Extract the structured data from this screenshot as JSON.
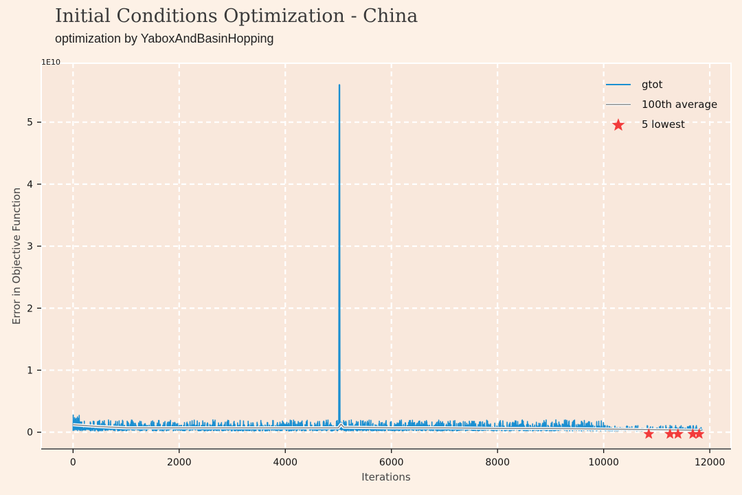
{
  "header": {
    "title": "Initial Conditions Optimization - China",
    "subtitle": "optimization by YaboxAndBasinHopping"
  },
  "colors": {
    "background": "#fdf1e6",
    "plot_area": "#f9e8dc",
    "grid": "#ffffff",
    "gtot": "#1a8fd1",
    "average": "#8a8a8a",
    "lowest": "#f23b3b"
  },
  "chart_data": {
    "type": "line",
    "title": "Initial Conditions Optimization - China",
    "subtitle": "optimization by YaboxAndBasinHopping",
    "xlabel": "Iterations",
    "ylabel": "Error in Objective Function",
    "y_scale_label": "1E10",
    "xlim": [
      -600,
      12400
    ],
    "ylim": [
      -0.27,
      5.95
    ],
    "x_ticks": [
      0,
      2000,
      4000,
      6000,
      8000,
      10000,
      12000
    ],
    "x_tick_labels": [
      "0",
      "2000",
      "4000",
      "6000",
      "8000",
      "10000",
      "12000"
    ],
    "y_ticks": [
      0,
      1,
      2,
      3,
      4,
      5
    ],
    "y_tick_labels": [
      "0",
      "1",
      "2",
      "3",
      "4",
      "5"
    ],
    "grid": true,
    "legend": "top-right",
    "series": [
      {
        "name": "gtot",
        "kind": "line",
        "x_range": [
          0,
          11850
        ],
        "baseline_range": [
          0.05,
          0.2
        ],
        "spike": {
          "x": 5020,
          "y": 5.6
        }
      },
      {
        "name": "100th average",
        "kind": "line",
        "points": [
          [
            0,
            0.12
          ],
          [
            500,
            0.09
          ],
          [
            1000,
            0.07
          ],
          [
            2000,
            0.07
          ],
          [
            3000,
            0.07
          ],
          [
            4000,
            0.07
          ],
          [
            5000,
            0.07
          ],
          [
            5050,
            0.13
          ],
          [
            5100,
            0.08
          ],
          [
            6000,
            0.07
          ],
          [
            7000,
            0.07
          ],
          [
            8000,
            0.06
          ],
          [
            9000,
            0.06
          ],
          [
            10000,
            0.05
          ],
          [
            11000,
            0.04
          ],
          [
            11850,
            0.03
          ]
        ]
      },
      {
        "name": "5 lowest",
        "kind": "scatter",
        "marker": "star",
        "points": [
          [
            10850,
            -0.03
          ],
          [
            11250,
            -0.03
          ],
          [
            11400,
            -0.03
          ],
          [
            11680,
            -0.03
          ],
          [
            11800,
            -0.03
          ]
        ]
      }
    ]
  }
}
